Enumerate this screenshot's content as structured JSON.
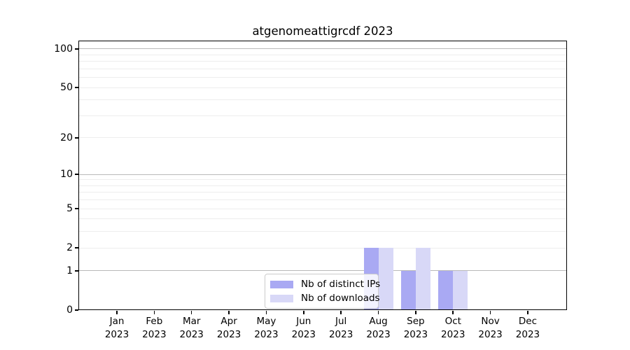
{
  "chart_data": {
    "type": "bar",
    "title": "atgenomeattigrcdf 2023",
    "year_label": "2023",
    "categories": [
      "Jan",
      "Feb",
      "Mar",
      "Apr",
      "May",
      "Jun",
      "Jul",
      "Aug",
      "Sep",
      "Oct",
      "Nov",
      "Dec"
    ],
    "series": [
      {
        "name": "Nb of distinct IPs",
        "color": "#a9a9f3",
        "values": [
          0,
          0,
          0,
          0,
          0,
          0,
          0,
          2,
          1,
          1,
          0,
          0
        ]
      },
      {
        "name": "Nb of downloads",
        "color": "#d8d8f7",
        "values": [
          0,
          0,
          0,
          0,
          0,
          0,
          0,
          2,
          2,
          1,
          0,
          0
        ]
      }
    ],
    "y_axis": {
      "scale": "log10(1+y)",
      "ticks": [
        0,
        1,
        2,
        5,
        10,
        20,
        50,
        100
      ],
      "range": [
        0,
        116
      ],
      "grid_major": [
        1,
        10,
        100
      ],
      "grid_minor": [
        2,
        3,
        4,
        5,
        6,
        7,
        8,
        9,
        20,
        30,
        40,
        50,
        60,
        70,
        80,
        90
      ]
    },
    "legend": {
      "position": "lower center"
    },
    "colors": {
      "grid_major": "#b9b9b9",
      "grid_minor": "#ededed",
      "axis": "#000000",
      "text": "#000000"
    }
  }
}
